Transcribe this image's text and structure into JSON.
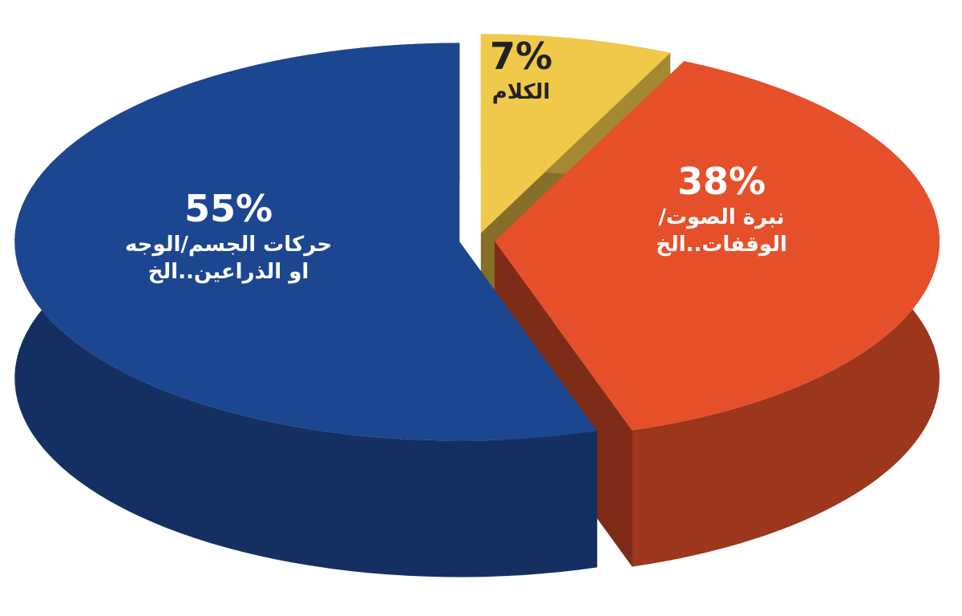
{
  "chart_data": {
    "type": "pie3d",
    "categories": [
      "حركات الجسم/الوجه\nاو الذراعين..الخ",
      "نبرة الصوت/\nالوقفات..الخ",
      "الكلام"
    ],
    "values": [
      55,
      38,
      7
    ],
    "value_labels": [
      "55%",
      "38%",
      "7%"
    ],
    "colors": [
      "#1d4690",
      "#e5502a",
      "#f1c94a"
    ],
    "label_colors": [
      "#ffffff",
      "#ffffff",
      "#222222"
    ]
  }
}
